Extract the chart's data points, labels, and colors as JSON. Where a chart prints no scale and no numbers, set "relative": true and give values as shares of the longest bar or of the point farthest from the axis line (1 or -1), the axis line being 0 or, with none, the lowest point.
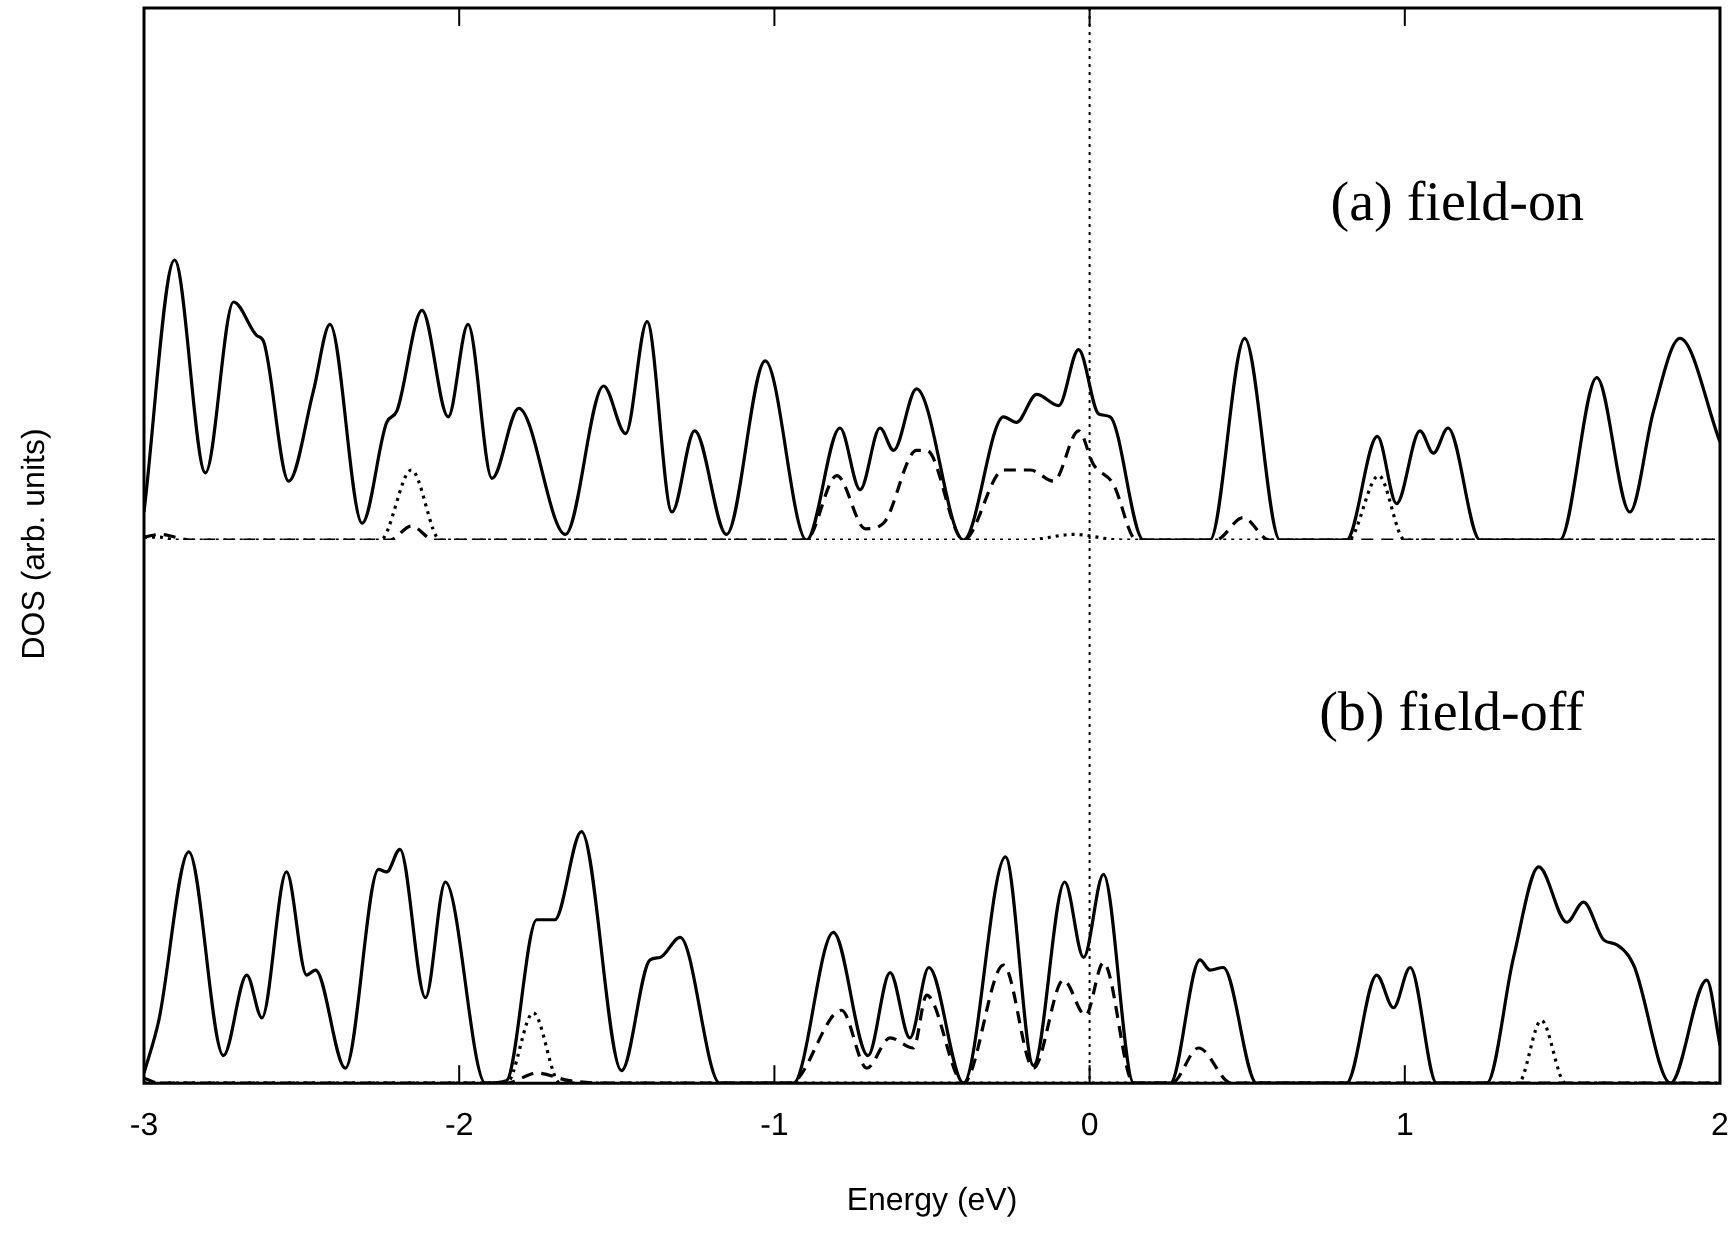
{
  "chart_data": [
    {
      "type": "line",
      "relative": true,
      "xlim": [
        -3,
        2
      ],
      "xticks": [
        -3,
        -2,
        -1,
        0,
        1,
        2
      ],
      "tick_labels": false,
      "annotations": [
        "(a) field-on"
      ],
      "ref_lines": [
        {
          "axis": "x",
          "value": 0,
          "line_style": "dotted",
          "color": "#000000"
        }
      ],
      "series": [
        {
          "color": "#000000",
          "line_style": "solid",
          "x": [
            -3.0,
            -2.903,
            -2.805,
            -2.716,
            -2.642,
            -2.621,
            -2.541,
            -2.463,
            -2.41,
            -2.308,
            -2.23,
            -2.198,
            -2.118,
            -2.035,
            -1.972,
            -1.896,
            -1.811,
            -1.663,
            -1.542,
            -1.472,
            -1.404,
            -1.325,
            -1.253,
            -1.152,
            -1.029,
            -0.898,
            -0.792,
            -0.728,
            -0.665,
            -0.622,
            -0.549,
            -0.4,
            -0.273,
            -0.232,
            -0.168,
            -0.098,
            -0.035,
            0.029,
            0.065,
            0.171,
            0.382,
            0.492,
            0.604,
            0.815,
            0.913,
            0.974,
            1.048,
            1.091,
            1.137,
            1.239,
            1.492,
            1.609,
            1.714,
            1.789,
            1.873,
            2.0
          ],
          "values": [
            0.1,
            1.0,
            0.24,
            0.85,
            0.73,
            0.71,
            0.21,
            0.53,
            0.77,
            0.06,
            0.42,
            0.46,
            0.82,
            0.44,
            0.77,
            0.22,
            0.47,
            0.02,
            0.55,
            0.38,
            0.78,
            0.1,
            0.39,
            0.02,
            0.64,
            0.0,
            0.4,
            0.18,
            0.4,
            0.32,
            0.54,
            0.0,
            0.44,
            0.42,
            0.52,
            0.48,
            0.68,
            0.45,
            0.44,
            0.0,
            0.0,
            0.72,
            0.0,
            0.0,
            0.37,
            0.13,
            0.39,
            0.31,
            0.4,
            0.0,
            0.0,
            0.58,
            0.1,
            0.46,
            0.72,
            0.35
          ]
        },
        {
          "color": "#000000",
          "line_style": "dashed",
          "x": [
            -3.0,
            -2.95,
            -2.85,
            -2.22,
            -2.152,
            -2.08,
            -0.9,
            -0.802,
            -0.711,
            -0.654,
            -0.549,
            -0.517,
            -0.4,
            -0.273,
            -0.188,
            -0.114,
            -0.035,
            0.012,
            0.075,
            0.149,
            0.4,
            0.487,
            0.57,
            2.0
          ],
          "values": [
            0.01,
            0.02,
            0.0,
            0.0,
            0.05,
            0.0,
            0.0,
            0.23,
            0.04,
            0.06,
            0.32,
            0.32,
            0.0,
            0.25,
            0.25,
            0.21,
            0.39,
            0.27,
            0.2,
            0.0,
            0.0,
            0.08,
            0.0,
            0.0
          ]
        },
        {
          "color": "#000000",
          "line_style": "dotted",
          "x": [
            -3.0,
            -2.95,
            -2.9,
            -2.25,
            -2.152,
            -2.06,
            -0.2,
            -0.05,
            0.1,
            0.82,
            0.917,
            1.0,
            2.0
          ],
          "values": [
            0.01,
            0.01,
            0.0,
            0.0,
            0.25,
            0.0,
            0.0,
            0.02,
            0.0,
            0.0,
            0.23,
            0.0,
            0.0
          ]
        }
      ]
    },
    {
      "type": "line",
      "relative": true,
      "xlim": [
        -3,
        2
      ],
      "xticks": [
        -3,
        -2,
        -1,
        0,
        1,
        2
      ],
      "xlabel": "Energy (eV)",
      "ylabel": "DOS (arb. units)",
      "annotations": [
        "(b) field-off"
      ],
      "ref_lines": [
        {
          "axis": "x",
          "value": 0,
          "line_style": "dotted",
          "color": "#000000"
        }
      ],
      "series": [
        {
          "color": "#000000",
          "line_style": "solid",
          "x": [
            -3.0,
            -2.953,
            -2.858,
            -2.748,
            -2.674,
            -2.626,
            -2.548,
            -2.484,
            -2.456,
            -2.361,
            -2.256,
            -2.23,
            -2.188,
            -2.107,
            -2.044,
            -1.917,
            -1.85,
            -1.754,
            -1.697,
            -1.612,
            -1.485,
            -1.395,
            -1.363,
            -1.299,
            -1.173,
            -0.94,
            -0.813,
            -0.703,
            -0.633,
            -0.57,
            -0.51,
            -0.4,
            -0.267,
            -0.178,
            -0.079,
            -0.019,
            0.044,
            0.14,
            0.256,
            0.35,
            0.382,
            0.424,
            0.53,
            0.815,
            0.911,
            0.964,
            1.017,
            1.101,
            1.26,
            1.345,
            1.425,
            1.514,
            1.567,
            1.631,
            1.673,
            1.726,
            1.843,
            1.958,
            2.0
          ],
          "values": [
            0.04,
            0.25,
            0.92,
            0.11,
            0.43,
            0.26,
            0.84,
            0.43,
            0.45,
            0.06,
            0.85,
            0.84,
            0.93,
            0.34,
            0.8,
            0.0,
            0.01,
            0.65,
            0.65,
            1.0,
            0.05,
            0.49,
            0.5,
            0.58,
            0.0,
            0.0,
            0.6,
            0.11,
            0.44,
            0.18,
            0.46,
            0.0,
            0.9,
            0.07,
            0.8,
            0.5,
            0.83,
            0.0,
            0.0,
            0.49,
            0.45,
            0.46,
            0.0,
            0.0,
            0.43,
            0.3,
            0.46,
            0.0,
            0.0,
            0.5,
            0.86,
            0.64,
            0.72,
            0.57,
            0.55,
            0.47,
            0.0,
            0.41,
            0.15
          ]
        },
        {
          "color": "#000000",
          "line_style": "dashed",
          "x": [
            -3.0,
            -2.95,
            -1.85,
            -1.754,
            -1.65,
            -1.5,
            -0.95,
            -0.787,
            -0.707,
            -0.633,
            -0.559,
            -0.517,
            -0.4,
            -0.273,
            -0.178,
            -0.083,
            -0.013,
            0.044,
            0.14,
            0.26,
            0.346,
            0.45,
            1.9,
            2.0
          ],
          "values": [
            0.02,
            0.0,
            0.0,
            0.04,
            0.01,
            0.0,
            0.0,
            0.29,
            0.06,
            0.18,
            0.14,
            0.35,
            0.0,
            0.47,
            0.06,
            0.41,
            0.27,
            0.48,
            0.0,
            0.0,
            0.14,
            0.0,
            0.0,
            0.0
          ]
        },
        {
          "color": "#000000",
          "line_style": "dotted",
          "x": [
            -3.0,
            -1.85,
            -1.765,
            -1.68,
            1.36,
            1.433,
            1.51,
            2.0
          ],
          "values": [
            0.0,
            0.0,
            0.28,
            0.0,
            0.0,
            0.25,
            0.0,
            0.0
          ]
        }
      ]
    }
  ]
}
